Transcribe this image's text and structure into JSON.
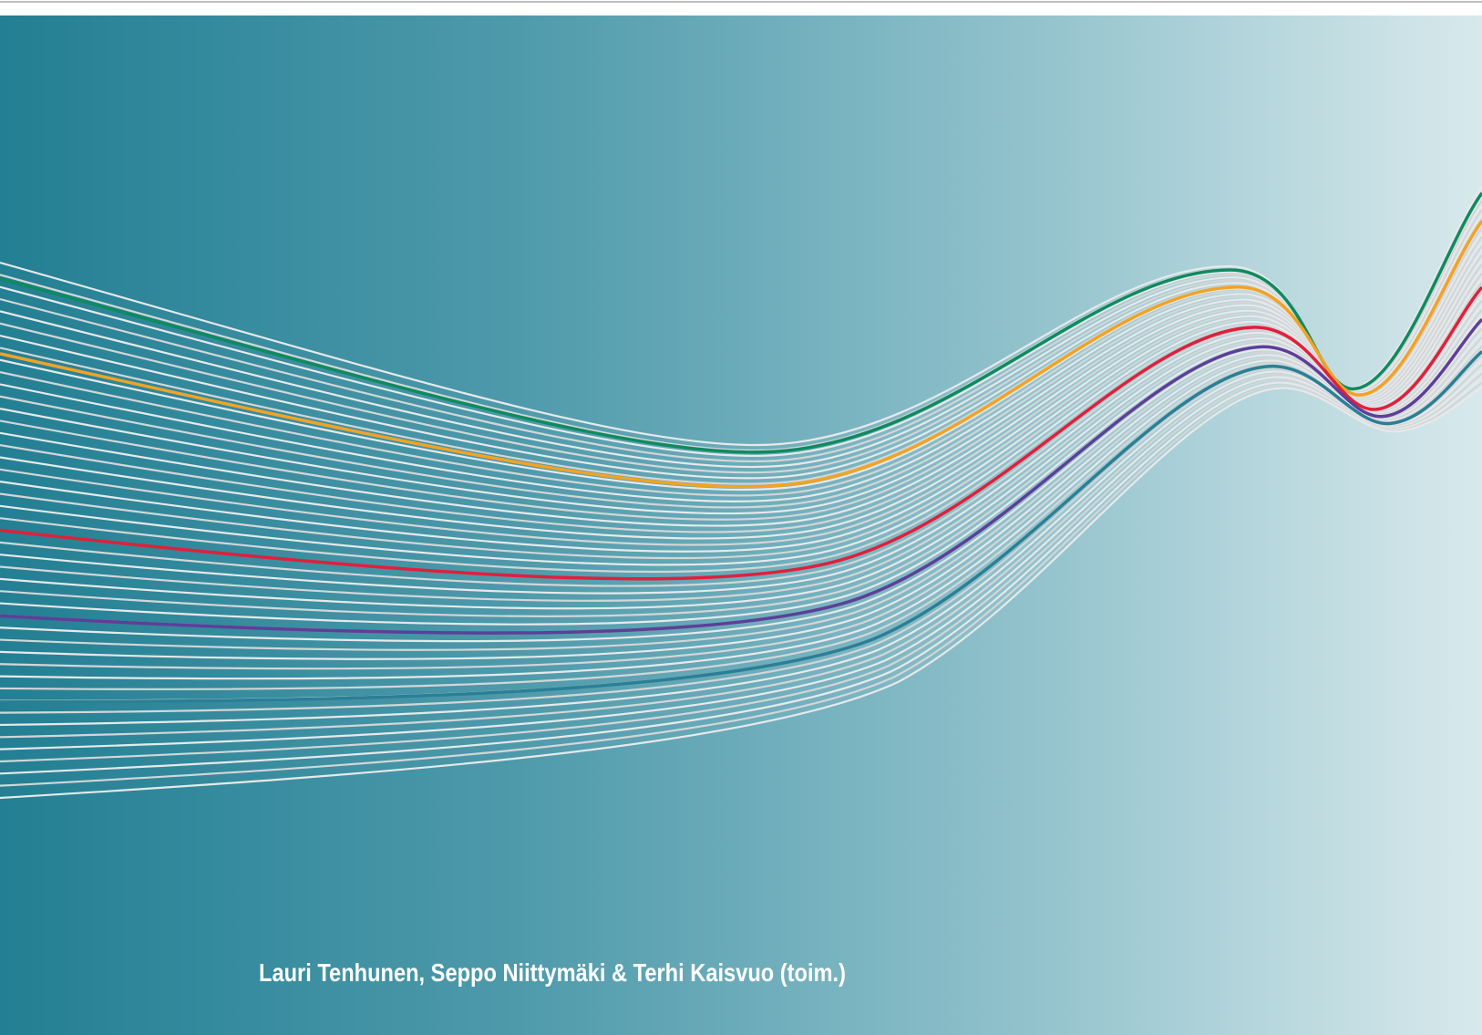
{
  "cover": {
    "authors": "Lauri Tenhunen, Seppo Niittymäki & Terhi Kaisvuo (toim.)"
  }
}
